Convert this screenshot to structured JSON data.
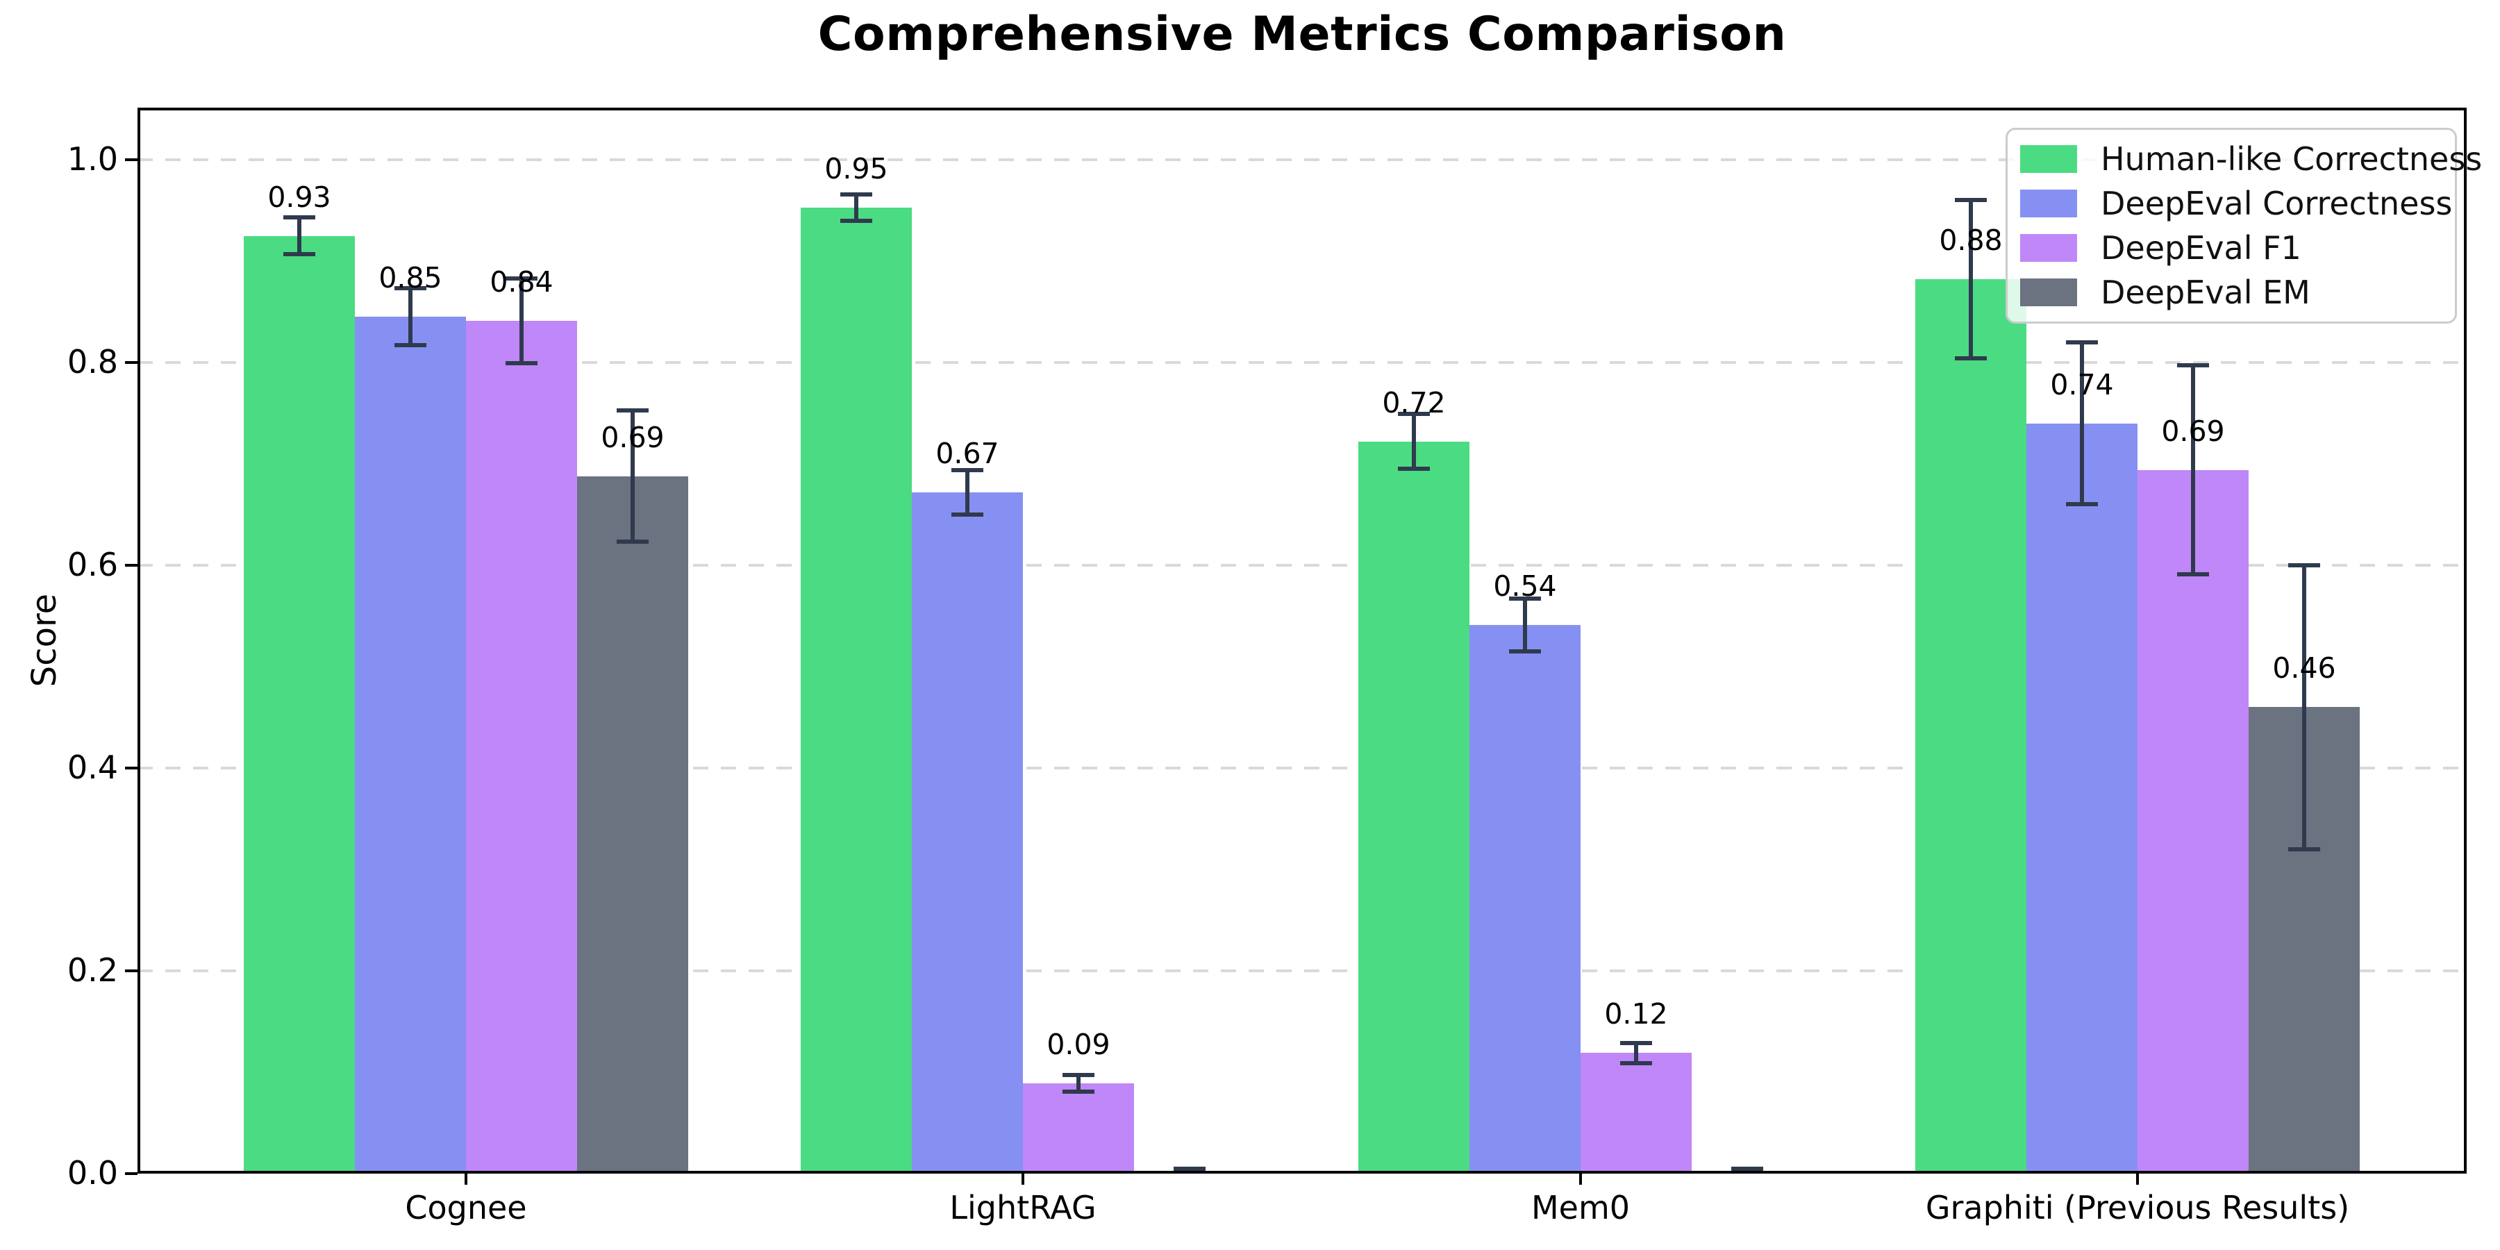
{
  "title": "Comprehensive Metrics Comparison",
  "chart_data": {
    "type": "bar",
    "title": "Comprehensive Metrics Comparison",
    "ylabel": "Score",
    "xlabel": "",
    "categories": [
      "Cognee",
      "LightRAG",
      "Mem0",
      "Graphiti (Previous Results)"
    ],
    "series": [
      {
        "name": "Human-like Correctness",
        "color": "#4bdb83",
        "values": [
          0.925,
          0.953,
          0.722,
          0.882
        ],
        "errors": [
          0.018,
          0.013,
          0.027,
          0.078
        ],
        "labels": [
          "0.93",
          "0.95",
          "0.72",
          "0.88"
        ]
      },
      {
        "name": "DeepEval Correctness",
        "color": "#8690f2",
        "values": [
          0.845,
          0.672,
          0.541,
          0.74
        ],
        "errors": [
          0.028,
          0.022,
          0.026,
          0.08
        ],
        "labels": [
          "0.85",
          "0.67",
          "0.54",
          "0.74"
        ]
      },
      {
        "name": "DeepEval F1",
        "color": "#bf87f7",
        "values": [
          0.841,
          0.089,
          0.119,
          0.694
        ],
        "errors": [
          0.042,
          0.008,
          0.01,
          0.103
        ],
        "labels": [
          "0.84",
          "0.09",
          "0.12",
          "0.69"
        ]
      },
      {
        "name": "DeepEval EM",
        "color": "#6b7280",
        "values": [
          0.688,
          0.0,
          0.0,
          0.46
        ],
        "errors": [
          0.065,
          0.005,
          0.005,
          0.14
        ],
        "labels": [
          "0.69",
          null,
          null,
          "0.46"
        ]
      }
    ],
    "ytick_labels": [
      "0.0",
      "0.2",
      "0.4",
      "0.6",
      "0.8",
      "1.0"
    ],
    "ytick_values": [
      0.0,
      0.2,
      0.4,
      0.6,
      0.8,
      1.0
    ],
    "ylim": [
      0.0,
      1.05
    ],
    "grid": "horizontal-dashed",
    "gridline_color": "#d9d9d9",
    "legend_position": "upper-right",
    "error_bar_color": "#2f3a4d",
    "background_color": "#ffffff"
  }
}
